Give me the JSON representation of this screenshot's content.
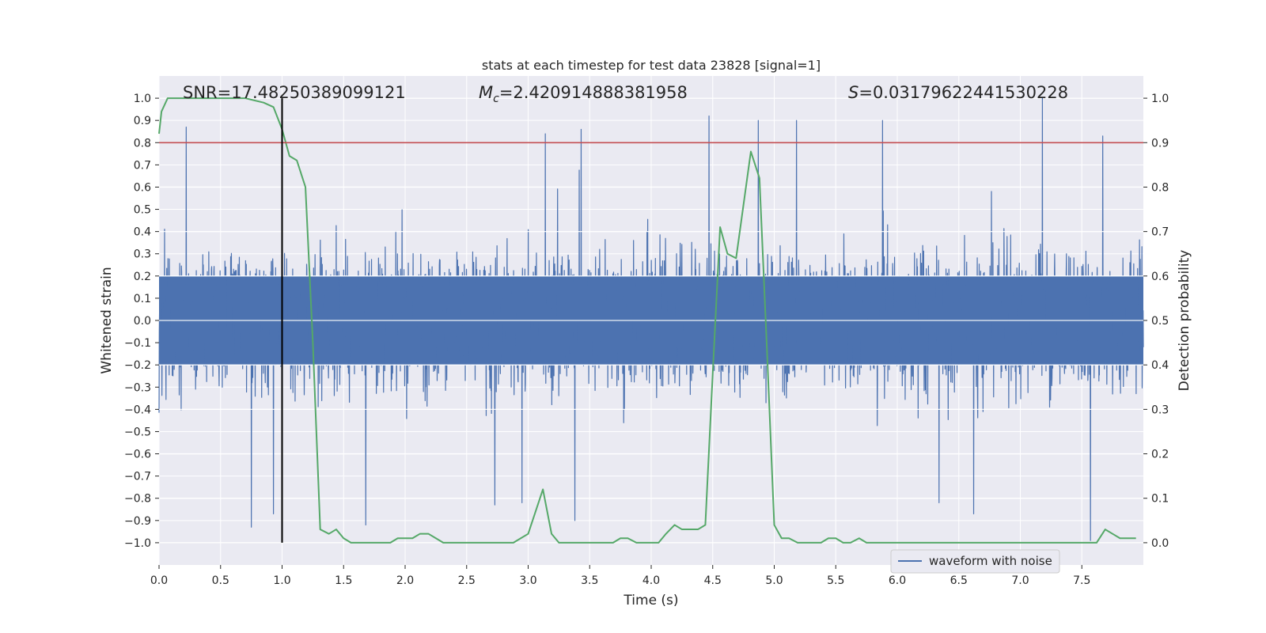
{
  "chart_data": {
    "type": "line",
    "title": "stats at each timestep for test data 23828 [signal=1]",
    "xlabel": "Time (s)",
    "ylabel_left": "Whitened strain",
    "ylabel_right": "Detection probability",
    "xlim": [
      0.0,
      8.0
    ],
    "ylim_left": [
      -1.1,
      1.1
    ],
    "ylim_right": [
      -0.05,
      1.05
    ],
    "x_ticks": [
      "0.0",
      "0.5",
      "1.0",
      "1.5",
      "2.0",
      "2.5",
      "3.0",
      "3.5",
      "4.0",
      "4.5",
      "5.0",
      "5.5",
      "6.0",
      "6.5",
      "7.0",
      "7.5"
    ],
    "y_ticks_left": [
      "1.0",
      "0.9",
      "0.8",
      "0.7",
      "0.6",
      "0.5",
      "0.4",
      "0.3",
      "0.2",
      "0.1",
      "0.0",
      "−0.1",
      "−0.2",
      "−0.3",
      "−0.4",
      "−0.5",
      "−0.6",
      "−0.7",
      "−0.8",
      "−0.9",
      "−1.0"
    ],
    "y_ticks_right": [
      "1.0",
      "0.9",
      "0.8",
      "0.7",
      "0.6",
      "0.5",
      "0.4",
      "0.3",
      "0.2",
      "0.1",
      "0.0"
    ],
    "annotations": {
      "snr": "SNR=17.48250389099121",
      "mc_symbol": "M",
      "mc_sub": "c",
      "mc_value": "=2.420914888381958",
      "s_symbol": "S",
      "s_value": "=0.03179622441530228"
    },
    "threshold": {
      "value": 0.9,
      "color": "#c44e52"
    },
    "vertical_marker": {
      "x": 1.0,
      "color": "#000000"
    },
    "legend": {
      "entries": [
        "waveform with noise"
      ],
      "position": "lower-right"
    },
    "grid": true,
    "series": [
      {
        "name": "waveform with noise",
        "color": "#4c72b0",
        "axis": "left",
        "style": "dense noise",
        "envelope_typical": [
          -0.4,
          0.45
        ],
        "peaks": [
          {
            "x": 0.22,
            "y": 0.87
          },
          {
            "x": 0.75,
            "y": -0.93
          },
          {
            "x": 0.93,
            "y": -0.87
          },
          {
            "x": 1.68,
            "y": -0.92
          },
          {
            "x": 2.73,
            "y": -0.83
          },
          {
            "x": 2.95,
            "y": -0.82
          },
          {
            "x": 3.14,
            "y": 0.84
          },
          {
            "x": 3.38,
            "y": -0.9
          },
          {
            "x": 3.43,
            "y": 0.86
          },
          {
            "x": 4.47,
            "y": 0.92
          },
          {
            "x": 4.87,
            "y": 0.9
          },
          {
            "x": 5.18,
            "y": 0.9
          },
          {
            "x": 5.88,
            "y": 0.9
          },
          {
            "x": 6.34,
            "y": -0.82
          },
          {
            "x": 6.62,
            "y": -0.87
          },
          {
            "x": 7.18,
            "y": 1.0
          },
          {
            "x": 7.57,
            "y": -0.99
          },
          {
            "x": 7.67,
            "y": 0.83
          }
        ]
      },
      {
        "name": "Detection probability",
        "color": "#55a868",
        "axis": "right",
        "x": [
          0.0,
          0.02,
          0.07,
          0.15,
          0.3,
          0.5,
          0.7,
          0.85,
          0.93,
          1.0,
          1.06,
          1.12,
          1.19,
          1.25,
          1.31,
          1.38,
          1.44,
          1.5,
          1.56,
          1.62,
          1.69,
          1.75,
          1.81,
          1.88,
          1.94,
          2.0,
          2.06,
          2.12,
          2.19,
          2.25,
          2.31,
          2.38,
          2.44,
          2.5,
          2.56,
          2.62,
          2.69,
          2.75,
          2.81,
          2.88,
          2.94,
          3.0,
          3.06,
          3.12,
          3.19,
          3.25,
          3.31,
          3.38,
          3.44,
          3.5,
          3.56,
          3.62,
          3.69,
          3.75,
          3.81,
          3.88,
          3.94,
          4.0,
          4.06,
          4.12,
          4.19,
          4.25,
          4.31,
          4.38,
          4.44,
          4.5,
          4.56,
          4.62,
          4.69,
          4.75,
          4.81,
          4.88,
          4.94,
          5.0,
          5.06,
          5.12,
          5.19,
          5.25,
          5.31,
          5.38,
          5.44,
          5.5,
          5.56,
          5.62,
          5.69,
          5.75,
          5.81,
          5.88,
          6.0,
          6.25,
          6.5,
          6.75,
          7.0,
          7.25,
          7.5,
          7.56,
          7.62,
          7.69,
          7.75,
          7.81,
          7.88,
          7.94
        ],
        "y": [
          0.92,
          0.97,
          1.0,
          1.0,
          1.0,
          1.0,
          1.0,
          0.99,
          0.98,
          0.93,
          0.87,
          0.86,
          0.8,
          0.45,
          0.03,
          0.02,
          0.03,
          0.01,
          0.0,
          0.0,
          0.0,
          0.0,
          0.0,
          0.0,
          0.01,
          0.01,
          0.01,
          0.02,
          0.02,
          0.01,
          0.0,
          0.0,
          0.0,
          0.0,
          0.0,
          0.0,
          0.0,
          0.0,
          0.0,
          0.0,
          0.01,
          0.02,
          0.07,
          0.12,
          0.02,
          0.0,
          0.0,
          0.0,
          0.0,
          0.0,
          0.0,
          0.0,
          0.0,
          0.01,
          0.01,
          0.0,
          0.0,
          0.0,
          0.0,
          0.02,
          0.04,
          0.03,
          0.03,
          0.03,
          0.04,
          0.38,
          0.71,
          0.65,
          0.64,
          0.76,
          0.88,
          0.82,
          0.44,
          0.04,
          0.01,
          0.01,
          0.0,
          0.0,
          0.0,
          0.0,
          0.01,
          0.01,
          0.0,
          0.0,
          0.01,
          0.0,
          0.0,
          0.0,
          0.0,
          0.0,
          0.0,
          0.0,
          0.0,
          0.0,
          0.0,
          0.0,
          0.0,
          0.03,
          0.02,
          0.01,
          0.01,
          0.01
        ]
      }
    ]
  }
}
